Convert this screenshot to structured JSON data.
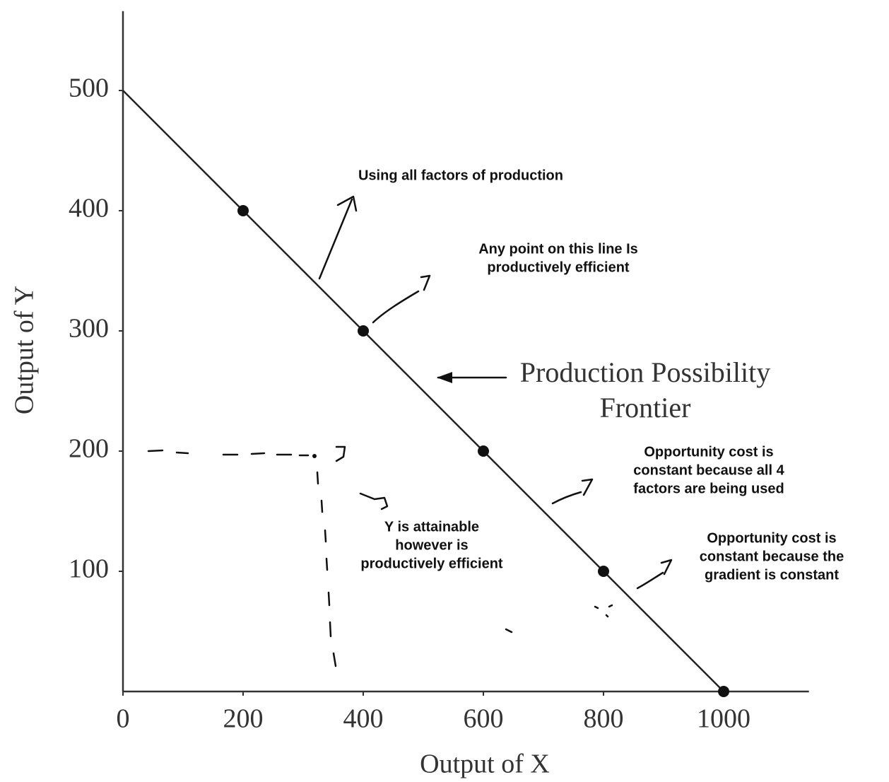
{
  "chart_data": {
    "type": "line",
    "xlabel": "Output of X",
    "ylabel": "Output of Y",
    "xlim": [
      0,
      1142
    ],
    "ylim": [
      0,
      566
    ],
    "xticks": [
      0,
      200,
      400,
      600,
      800,
      1000
    ],
    "yticks": [
      100,
      200,
      300,
      400,
      500
    ],
    "series": [
      {
        "name": "Production Possibility Frontier",
        "color": "#222222",
        "x": [
          0,
          1000
        ],
        "values": [
          500,
          0
        ]
      }
    ],
    "points": {
      "color": "#111111",
      "x": [
        200,
        400,
        600,
        800,
        1000
      ],
      "values": [
        400,
        300,
        200,
        100,
        0
      ]
    },
    "annotations": [
      [
        "Using all factors of production"
      ],
      [
        "Any point on this line Is",
        "productively efficient"
      ],
      [
        "Production Possibility",
        "Frontier"
      ],
      [
        "Opportunity cost is",
        "constant because all 4",
        "factors are being used"
      ],
      [
        "Y is attainable",
        "however is",
        "productively efficient"
      ],
      [
        "Opportunity cost is",
        "constant because the",
        "gradient is constant"
      ]
    ]
  }
}
